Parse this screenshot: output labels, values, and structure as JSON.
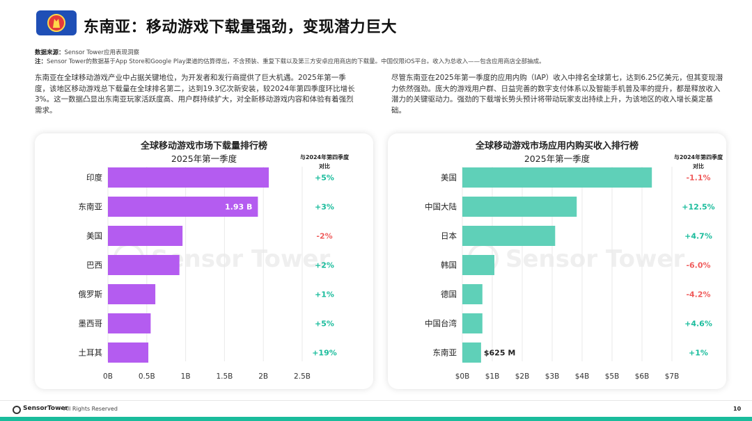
{
  "header": {
    "title": "东南亚：移动游戏下载量强劲，变现潜力巨大"
  },
  "source": {
    "label": "数据来源：",
    "text": "Sensor Tower应用表现洞察"
  },
  "note": {
    "label": "注：",
    "text": "Sensor Tower的数据基于App Store和Google Play渠道的估算得出，不含预装、重复下载以及第三方安卓应用商店的下载量。中国仅限iOS平台。收入为总收入——包含应用商店全部抽成。"
  },
  "paragraphs": {
    "left": "东南亚在全球移动游戏产业中占据关键地位，为开发者和发行商提供了巨大机遇。2025年第一季度，该地区移动游戏总下载量在全球排名第二，达到19.3亿次新安装，较2024年第四季度环比增长3%。这一数据凸显出东南亚玩家活跃度高、用户群持续扩大，对全新移动游戏内容和体验有着强烈需求。",
    "right": "尽管东南亚在2025年第一季度的应用内购（IAP）收入中排名全球第七，达到6.25亿美元，但其变现潜力依然强劲。庞大的游戏用户群、日益完善的数字支付体系以及智能手机普及率的提升，都是释放收入潜力的关键驱动力。强劲的下载增长势头预计将带动玩家支出持续上升，为该地区的收入增长奠定基础。"
  },
  "watermark": "Sensor Tower",
  "footer": {
    "brand": "SensorTower",
    "rights": "- All Rights Reserved",
    "page": "10"
  },
  "colors": {
    "download_bar": "#b45cf0",
    "revenue_bar": "#5fd0b8",
    "positive": "#1abc9c",
    "negative": "#ef5b5b",
    "accent": "#1f4fb6"
  },
  "chart_data": [
    {
      "type": "bar",
      "orientation": "horizontal",
      "title": "全球移动游戏市场下载量排行榜",
      "subtitle": "2025年第一季度",
      "change_header": [
        "与2024年第四季度",
        "对比"
      ],
      "categories": [
        "印度",
        "东南亚",
        "美国",
        "巴西",
        "俄罗斯",
        "墨西哥",
        "土耳其"
      ],
      "values": [
        2.07,
        1.93,
        0.96,
        0.92,
        0.61,
        0.55,
        0.52
      ],
      "unit": "B",
      "data_labels": [
        "",
        "1.93 B",
        "",
        "",
        "",
        "",
        ""
      ],
      "changes": [
        "+5%",
        "+3%",
        "-2%",
        "+2%",
        "+1%",
        "+5%",
        "+19%"
      ],
      "xticks": [
        "0B",
        "0.5B",
        "1B",
        "1.5B",
        "2B",
        "2.5B"
      ],
      "xlim": [
        0,
        2.5
      ],
      "grid": true
    },
    {
      "type": "bar",
      "orientation": "horizontal",
      "title": "全球移动游戏市场应用内购买收入排行榜",
      "subtitle": "2025年第一季度",
      "change_header": [
        "与2024年第四季度",
        "对比"
      ],
      "categories": [
        "美国",
        "中国大陆",
        "日本",
        "韩国",
        "德国",
        "中国台湾",
        "东南亚"
      ],
      "values": [
        6.33,
        3.82,
        3.1,
        1.07,
        0.67,
        0.67,
        0.625
      ],
      "unit": "$B",
      "data_labels": [
        "",
        "",
        "",
        "",
        "",
        "",
        "$625 M"
      ],
      "changes": [
        "-1.1%",
        "+12.5%",
        "+4.7%",
        "-6.0%",
        "-4.2%",
        "+4.6%",
        "+1%"
      ],
      "xticks": [
        "$0B",
        "$1B",
        "$2B",
        "$3B",
        "$4B",
        "$5B",
        "$6B",
        "$7B"
      ],
      "xlim": [
        0,
        7
      ],
      "grid": true
    }
  ]
}
